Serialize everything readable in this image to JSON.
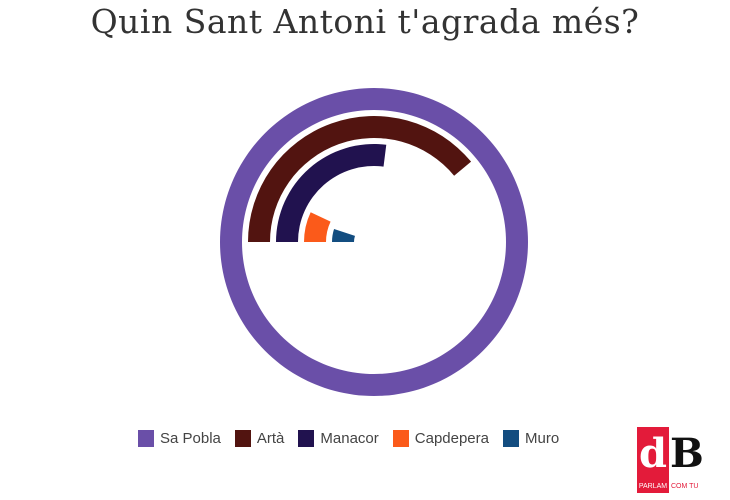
{
  "chart_data": {
    "type": "radial-bar",
    "title": "Quin Sant Antoni t'agrada més?",
    "unit": "percent of full circle (relative to max)",
    "categories": [
      "Sa Pobla",
      "Artà",
      "Manacor",
      "Capdepera",
      "Muro"
    ],
    "values": [
      100,
      39,
      27,
      7,
      5
    ],
    "colors": [
      "#6a4fa8",
      "#521410",
      "#21124f",
      "#fb5a1a",
      "#134d80"
    ],
    "legend": "bottom"
  },
  "logo": {
    "letters_red": "d",
    "letters_dark": "B",
    "tagline_a": "PARLAM",
    "tagline_b": "COM TU"
  }
}
